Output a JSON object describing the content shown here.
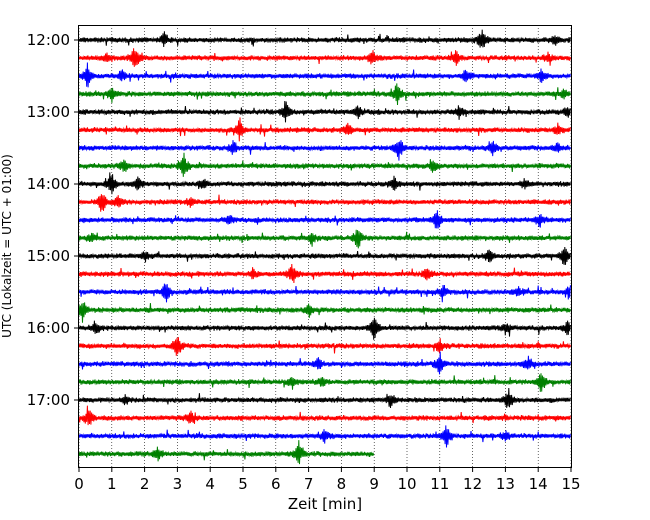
{
  "chart_data": {
    "type": "line",
    "xlabel": "Zeit  [min]",
    "ylabel": "UTC (Lokalzeit = UTC + 01:00)",
    "xlim": [
      0,
      15
    ],
    "x_ticks": [
      "0",
      "1",
      "2",
      "3",
      "4",
      "5",
      "6",
      "7",
      "8",
      "9",
      "10",
      "11",
      "12",
      "13",
      "14",
      "15"
    ],
    "y_tick_labels": [
      "12:00",
      "13:00",
      "14:00",
      "15:00",
      "16:00",
      "17:00"
    ],
    "y_tick_rows": [
      0,
      4,
      8,
      12,
      16,
      20
    ],
    "grid": "vertical dotted",
    "colors": [
      "#000000",
      "#ff0000",
      "#0000ff",
      "#008000"
    ],
    "series_count": 24,
    "last_trace_end_min": 9.0,
    "traces": [
      {
        "start": "12:00",
        "color": "#000000",
        "events_min": [
          12.3,
          2.6,
          14.5
        ]
      },
      {
        "start": "12:15",
        "color": "#ff0000",
        "events_min": [
          1.7,
          8.95,
          0.85,
          11.5,
          14.3
        ]
      },
      {
        "start": "12:30",
        "color": "#0000ff",
        "events_min": [
          0.25,
          14.1,
          1.3,
          11.8
        ]
      },
      {
        "start": "12:45",
        "color": "#008000",
        "events_min": [
          9.7,
          1.0,
          14.8
        ]
      },
      {
        "start": "13:00",
        "color": "#000000",
        "events_min": [
          6.3,
          8.5,
          14.9,
          11.6
        ]
      },
      {
        "start": "13:15",
        "color": "#ff0000",
        "events_min": [
          4.9,
          8.2,
          14.6
        ]
      },
      {
        "start": "13:30",
        "color": "#0000ff",
        "events_min": [
          9.75,
          12.6,
          14.6,
          4.7
        ]
      },
      {
        "start": "13:45",
        "color": "#008000",
        "events_min": [
          3.2,
          1.4,
          10.8
        ]
      },
      {
        "start": "14:00",
        "color": "#000000",
        "events_min": [
          1.0,
          1.8,
          3.8,
          9.6,
          13.6
        ]
      },
      {
        "start": "14:15",
        "color": "#ff0000",
        "events_min": [
          0.7,
          1.2,
          3.4
        ]
      },
      {
        "start": "14:30",
        "color": "#0000ff",
        "events_min": [
          10.9,
          14.05,
          4.6
        ]
      },
      {
        "start": "14:45",
        "color": "#008000",
        "events_min": [
          8.5,
          7.1,
          0.4
        ]
      },
      {
        "start": "15:00",
        "color": "#000000",
        "events_min": [
          14.8,
          12.5,
          2.0
        ]
      },
      {
        "start": "15:15",
        "color": "#ff0000",
        "events_min": [
          6.5,
          10.6,
          5.3
        ]
      },
      {
        "start": "15:30",
        "color": "#0000ff",
        "events_min": [
          2.65,
          11.1,
          13.4,
          14.95
        ]
      },
      {
        "start": "15:45",
        "color": "#008000",
        "events_min": [
          0.1,
          7.0
        ]
      },
      {
        "start": "16:00",
        "color": "#000000",
        "events_min": [
          9.0,
          0.5,
          13.0,
          14.9
        ]
      },
      {
        "start": "16:15",
        "color": "#ff0000",
        "events_min": [
          3.0,
          11.0
        ]
      },
      {
        "start": "16:30",
        "color": "#0000ff",
        "events_min": [
          11.0,
          13.7,
          7.3
        ]
      },
      {
        "start": "16:45",
        "color": "#008000",
        "events_min": [
          14.1,
          6.5,
          7.4
        ]
      },
      {
        "start": "17:00",
        "color": "#000000",
        "events_min": [
          13.1,
          9.5,
          1.4
        ]
      },
      {
        "start": "17:15",
        "color": "#ff0000",
        "events_min": [
          0.3,
          3.4
        ]
      },
      {
        "start": "17:30",
        "color": "#0000ff",
        "events_min": [
          11.2,
          7.5,
          13.0
        ]
      },
      {
        "start": "17:45",
        "color": "#008000",
        "events_min": [
          6.7,
          2.4
        ]
      }
    ]
  }
}
